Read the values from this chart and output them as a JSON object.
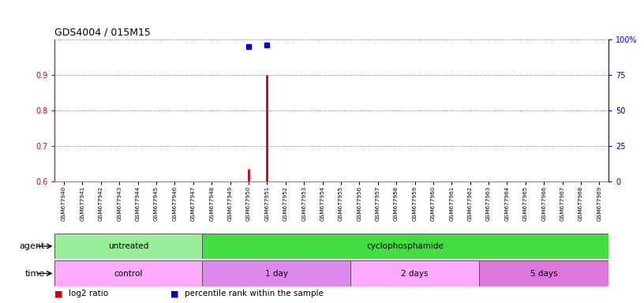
{
  "title": "GDS4004 / 015M15",
  "samples": [
    "GSM677940",
    "GSM677941",
    "GSM677942",
    "GSM677943",
    "GSM677944",
    "GSM677945",
    "GSM677946",
    "GSM677947",
    "GSM677948",
    "GSM677949",
    "GSM677950",
    "GSM677951",
    "GSM677952",
    "GSM677953",
    "GSM677954",
    "GSM677955",
    "GSM677956",
    "GSM677957",
    "GSM677958",
    "GSM677959",
    "GSM677960",
    "GSM677961",
    "GSM677962",
    "GSM677963",
    "GSM677964",
    "GSM677965",
    "GSM677966",
    "GSM677967",
    "GSM677968",
    "GSM677969"
  ],
  "log2_ratio": [
    null,
    null,
    null,
    null,
    null,
    null,
    null,
    null,
    null,
    null,
    0.636,
    0.9,
    null,
    null,
    null,
    null,
    null,
    null,
    null,
    null,
    null,
    null,
    null,
    null,
    null,
    null,
    null,
    null,
    null,
    null
  ],
  "percentile_rank": [
    null,
    null,
    null,
    null,
    null,
    null,
    null,
    null,
    null,
    null,
    94.8,
    96.3,
    null,
    null,
    null,
    null,
    null,
    null,
    null,
    null,
    null,
    null,
    null,
    null,
    null,
    null,
    null,
    null,
    null,
    null
  ],
  "ylim_left": [
    0.6,
    1.0
  ],
  "ylim_right": [
    0,
    100
  ],
  "yticks_left": [
    0.6,
    0.7,
    0.8,
    0.9
  ],
  "ytick_labels_left": [
    "0.6",
    "0.7",
    "0.8",
    "0.9"
  ],
  "yticks_right": [
    0,
    25,
    50,
    75,
    100
  ],
  "ytick_labels_right": [
    "0",
    "25",
    "50",
    "75",
    "100%"
  ],
  "bar_color": "#cc0000",
  "dot_color": "#0000cc",
  "agent_groups": [
    {
      "label": "untreated",
      "start": 0,
      "end": 7,
      "color": "#99ee99"
    },
    {
      "label": "cyclophosphamide",
      "start": 8,
      "end": 29,
      "color": "#44dd44"
    }
  ],
  "time_groups": [
    {
      "label": "control",
      "start": 0,
      "end": 7,
      "color": "#ffaaff"
    },
    {
      "label": "1 day",
      "start": 8,
      "end": 15,
      "color": "#dd88ee"
    },
    {
      "label": "2 days",
      "start": 16,
      "end": 22,
      "color": "#ffaaff"
    },
    {
      "label": "5 days",
      "start": 23,
      "end": 29,
      "color": "#dd77dd"
    }
  ],
  "legend_items": [
    {
      "label": "log2 ratio",
      "color": "#cc0000"
    },
    {
      "label": "percentile rank within the sample",
      "color": "#0000cc"
    }
  ],
  "grid_color": "#555555",
  "bg_color": "#ffffff",
  "left_axis_color": "#cc0000",
  "right_axis_color": "#0000cc"
}
